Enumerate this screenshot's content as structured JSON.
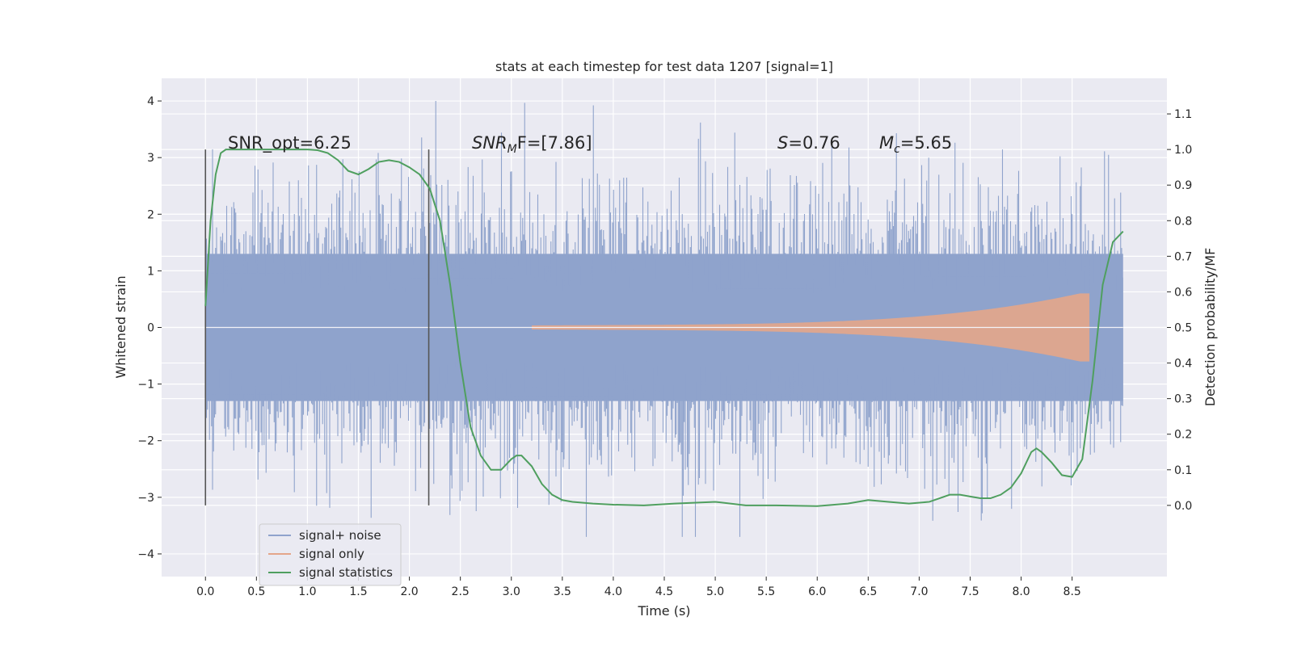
{
  "chart_data": {
    "type": "line",
    "title": "stats at each timestep for test data 1207 [signal=1]",
    "xlabel": "Time (s)",
    "ylabel": "Whitened strain",
    "y2label": "Detection probability/MF",
    "xlim": [
      -0.43,
      9.43
    ],
    "ylim": [
      -4.4,
      4.4
    ],
    "y2lim": [
      -0.2,
      1.2
    ],
    "xticks": [
      0.0,
      0.5,
      1.0,
      1.5,
      2.0,
      2.5,
      3.0,
      3.5,
      4.0,
      4.5,
      5.0,
      5.5,
      6.0,
      6.5,
      7.0,
      7.5,
      8.0,
      8.5
    ],
    "xtick_labels": [
      "0.0",
      "0.5",
      "1.0",
      "1.5",
      "2.0",
      "2.5",
      "3.0",
      "3.5",
      "4.0",
      "4.5",
      "5.0",
      "5.5",
      "6.0",
      "6.5",
      "7.0",
      "7.5",
      "8.0",
      "8.5"
    ],
    "yticks": [
      4,
      3,
      2,
      1,
      0,
      -1,
      -2,
      -3,
      -4
    ],
    "ytick_labels": [
      "4",
      "3",
      "2",
      "1",
      "0",
      "−1",
      "−2",
      "−3",
      "−4"
    ],
    "y2ticks": [
      1.1,
      1.0,
      0.9,
      0.8,
      0.7,
      0.6,
      0.5,
      0.4,
      0.3,
      0.2,
      0.1,
      0.0
    ],
    "y2tick_labels": [
      "1.1",
      "1.0",
      "0.9",
      "0.8",
      "0.7",
      "0.6",
      "0.5",
      "0.4",
      "0.3",
      "0.2",
      "0.1",
      "0.0"
    ],
    "grid": true,
    "legend_position": "lower-left",
    "annotations": {
      "snr_opt": "SNR_opt=6.25",
      "snr_mf_main": "SNR",
      "snr_mf_sub": "M",
      "snr_mf_rest": "F=[7.86]",
      "s_main": "S",
      "s_rest": "=0.76",
      "mc_main": "M",
      "mc_sub": "c",
      "mc_rest": "=5.65"
    },
    "vertical_markers": [
      0.0,
      2.19
    ],
    "series": [
      {
        "name": "signal+ noise",
        "color": "#8fa3cc",
        "kind": "noise",
        "x_range": [
          0.0,
          9.0
        ],
        "envelope": 1.3,
        "peak_range": [
          -3.7,
          4.0
        ]
      },
      {
        "name": "signal only",
        "color": "#e4a68a",
        "kind": "chirp",
        "x_range": [
          3.2,
          8.67
        ],
        "amplitude_range": [
          0.0,
          0.6
        ]
      },
      {
        "name": "signal statistics",
        "color": "#4f9f5f",
        "kind": "line",
        "axis": "right",
        "x": [
          0.0,
          0.05,
          0.1,
          0.15,
          0.2,
          0.3,
          0.5,
          0.8,
          1.0,
          1.1,
          1.2,
          1.3,
          1.4,
          1.5,
          1.6,
          1.7,
          1.8,
          1.9,
          2.0,
          2.1,
          2.2,
          2.3,
          2.4,
          2.5,
          2.6,
          2.7,
          2.8,
          2.9,
          3.0,
          3.05,
          3.1,
          3.2,
          3.3,
          3.4,
          3.5,
          3.6,
          3.8,
          4.0,
          4.3,
          4.6,
          5.0,
          5.3,
          5.6,
          6.0,
          6.3,
          6.5,
          6.7,
          6.9,
          7.1,
          7.2,
          7.3,
          7.4,
          7.5,
          7.6,
          7.7,
          7.8,
          7.9,
          8.0,
          8.1,
          8.15,
          8.2,
          8.3,
          8.4,
          8.5,
          8.6,
          8.7,
          8.8,
          8.9,
          9.0
        ],
        "y": [
          0.56,
          0.8,
          0.93,
          0.99,
          1.0,
          1.0,
          1.0,
          1.0,
          1.0,
          0.998,
          0.99,
          0.97,
          0.94,
          0.93,
          0.945,
          0.965,
          0.97,
          0.965,
          0.95,
          0.93,
          0.89,
          0.8,
          0.62,
          0.4,
          0.22,
          0.14,
          0.1,
          0.1,
          0.13,
          0.14,
          0.14,
          0.11,
          0.06,
          0.03,
          0.015,
          0.01,
          0.005,
          0.002,
          0.0,
          0.005,
          0.01,
          0.0,
          0.0,
          -0.002,
          0.005,
          0.015,
          0.01,
          0.005,
          0.01,
          0.02,
          0.03,
          0.03,
          0.025,
          0.02,
          0.02,
          0.03,
          0.05,
          0.09,
          0.15,
          0.16,
          0.15,
          0.12,
          0.085,
          0.08,
          0.13,
          0.35,
          0.62,
          0.74,
          0.77
        ]
      }
    ]
  }
}
